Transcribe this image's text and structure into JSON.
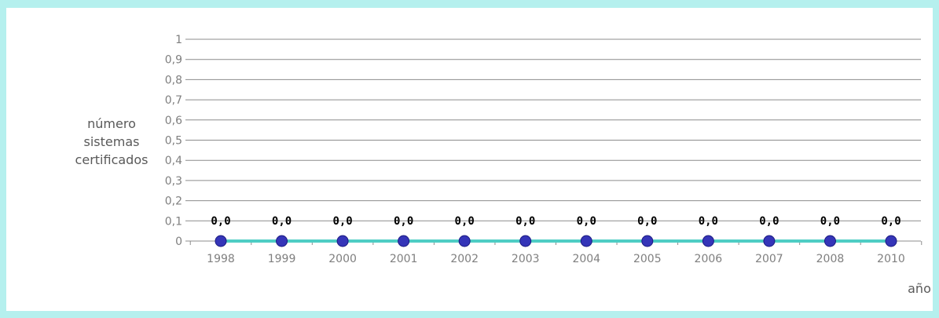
{
  "chart_data": {
    "type": "line",
    "title": "",
    "xlabel": "año",
    "ylabel": [
      "número",
      "sistemas",
      "certificados"
    ],
    "categories": [
      "1998",
      "1999",
      "2000",
      "2001",
      "2002",
      "2003",
      "2004",
      "2005",
      "2006",
      "2007",
      "2008",
      "2010"
    ],
    "series": [
      {
        "values": [
          0,
          0,
          0,
          0,
          0,
          0,
          0,
          0,
          0,
          0,
          0,
          0
        ],
        "data_labels": [
          "0,0",
          "0,0",
          "0,0",
          "0,0",
          "0,0",
          "0,0",
          "0,0",
          "0,0",
          "0,0",
          "0,0",
          "0,0",
          "0,0"
        ],
        "line_color": "#4ecdc4",
        "marker_color": "#3535b8"
      }
    ],
    "ylim": [
      0,
      1
    ],
    "yticks": [
      "0",
      "0,1",
      "0,2",
      "0,3",
      "0,4",
      "0,5",
      "0,6",
      "0,7",
      "0,8",
      "0,9",
      "1"
    ],
    "grid": true,
    "legend": "none"
  },
  "colors": {
    "frame_border": "#b5f0ee",
    "gridline": "#8c8c8c",
    "tick_text": "#7f7f7f"
  }
}
